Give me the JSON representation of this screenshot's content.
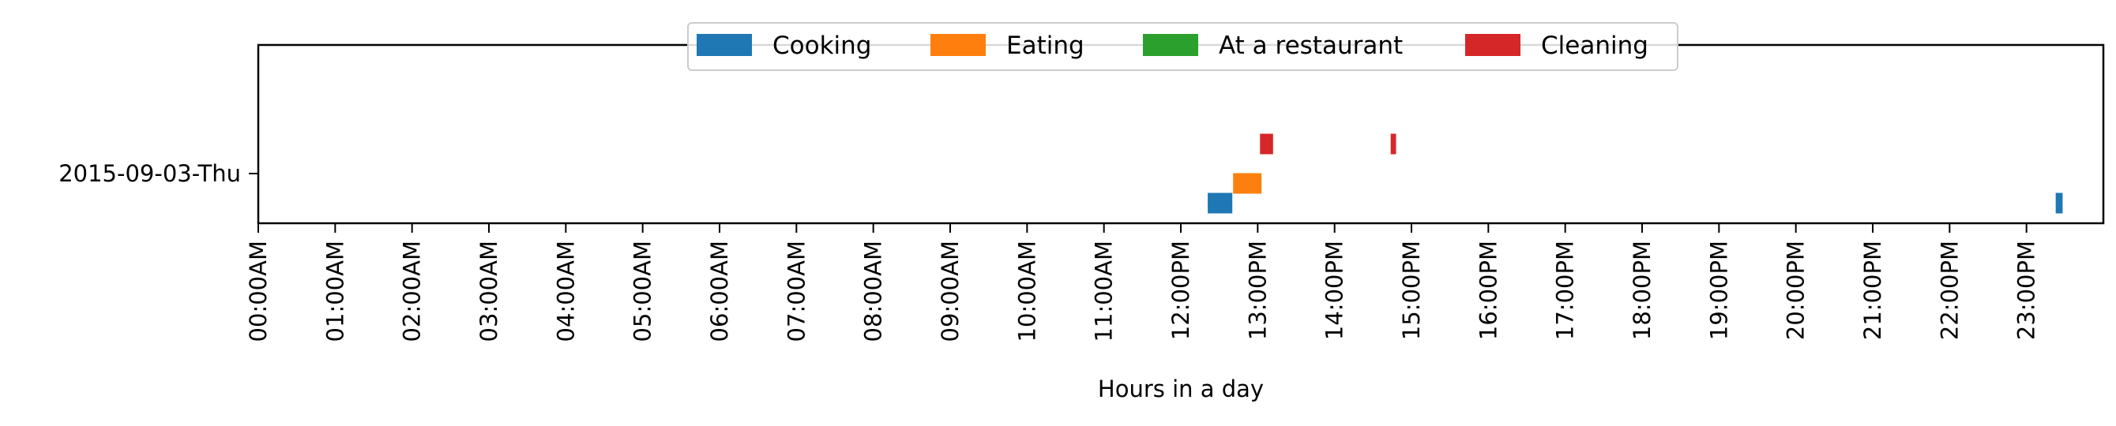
{
  "chart_data": {
    "type": "timeline",
    "xlabel": "Hours in a day",
    "x_range_hours": [
      0,
      24
    ],
    "x_ticks": [
      "00:00AM",
      "01:00AM",
      "02:00AM",
      "03:00AM",
      "04:00AM",
      "05:00AM",
      "06:00AM",
      "07:00AM",
      "08:00AM",
      "09:00AM",
      "10:00AM",
      "11:00AM",
      "12:00PM",
      "13:00PM",
      "14:00PM",
      "15:00PM",
      "16:00PM",
      "17:00PM",
      "18:00PM",
      "19:00PM",
      "20:00PM",
      "21:00PM",
      "22:00PM",
      "23:00PM"
    ],
    "rows": [
      "2015-09-03-Thu"
    ],
    "legend_position": "top-center",
    "series": [
      {
        "name": "Cooking",
        "color": "#1f77b4",
        "slot": 0,
        "intervals": [
          {
            "row": "2015-09-03-Thu",
            "start_hour": 12.35,
            "end_hour": 12.67
          },
          {
            "row": "2015-09-03-Thu",
            "start_hour": 23.38,
            "end_hour": 23.47
          }
        ]
      },
      {
        "name": "Eating",
        "color": "#ff7f0e",
        "slot": 1,
        "intervals": [
          {
            "row": "2015-09-03-Thu",
            "start_hour": 12.68,
            "end_hour": 13.05
          }
        ]
      },
      {
        "name": "At a restaurant",
        "color": "#2ca02c",
        "slot": 2,
        "intervals": []
      },
      {
        "name": "Cleaning",
        "color": "#d62728",
        "slot": 3,
        "intervals": [
          {
            "row": "2015-09-03-Thu",
            "start_hour": 13.03,
            "end_hour": 13.2
          },
          {
            "row": "2015-09-03-Thu",
            "start_hour": 14.73,
            "end_hour": 14.8
          }
        ]
      }
    ]
  }
}
